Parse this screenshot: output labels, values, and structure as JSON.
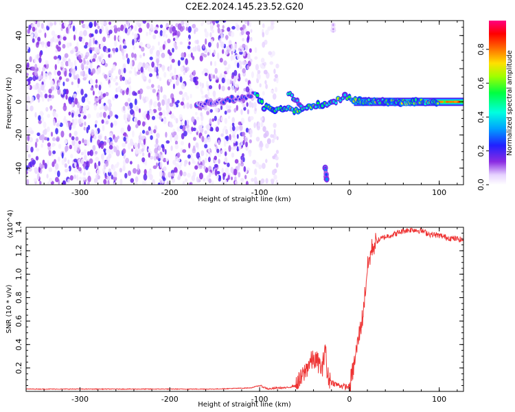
{
  "figure": {
    "title": "C2E2.2024.145.23.52.G20"
  },
  "chart_data": [
    {
      "type": "heatmap",
      "title": "C2E2.2024.145.23.52.G20",
      "xlabel": "Height of straight line (km)",
      "ylabel": "Frequency (Hz)",
      "xlim": [
        -360,
        127
      ],
      "ylim": [
        -50,
        49
      ],
      "xticks": [
        -300,
        -200,
        -100,
        0,
        100
      ],
      "xtick_labels": [
        "-300",
        "-200",
        "-100",
        "0",
        "100"
      ],
      "yticks": [
        -40,
        -20,
        0,
        20,
        40
      ],
      "ytick_labels": [
        "-40",
        "-20",
        "0",
        "20",
        "40"
      ],
      "grid": false,
      "colorbar": {
        "label": "Normalized spectral amplitude",
        "range": [
          0,
          0.97
        ],
        "ticks": [
          0.0,
          0.2,
          0.4,
          0.6,
          0.8
        ],
        "tick_labels": [
          "0.0",
          "0.2",
          "0.4",
          "0.6",
          "0.8"
        ],
        "placement": "right",
        "colormap": "rainbow (white → violet → blue → cyan → green → yellow → red → magenta)"
      },
      "features": [
        {
          "name": "noise",
          "x_range": [
            -360,
            -110
          ],
          "freq_range": [
            -50,
            49
          ],
          "amplitude": 0.05
        },
        {
          "name": "faint noise",
          "x_range": [
            -110,
            -80
          ],
          "freq_range": [
            -50,
            49
          ],
          "amplitude": 0.02
        },
        {
          "name": "trace",
          "points": [
            [
              -170,
              -2
            ],
            [
              -140,
              1
            ],
            [
              -115,
              3
            ],
            [
              -105,
              5
            ],
            [
              -95,
              -3
            ],
            [
              -85,
              -5
            ],
            [
              -70,
              -4
            ],
            [
              -55,
              -6
            ],
            [
              -45,
              -3
            ],
            [
              -35,
              -2
            ],
            [
              -25,
              -1
            ],
            [
              -15,
              0
            ],
            [
              -5,
              3
            ],
            [
              5,
              1
            ],
            [
              20,
              0
            ],
            [
              60,
              0
            ],
            [
              100,
              0
            ],
            [
              127,
              0
            ]
          ]
        },
        {
          "name": "branch",
          "points": [
            [
              -68,
              5
            ],
            [
              -60,
              1
            ],
            [
              -52,
              -5
            ]
          ]
        },
        {
          "name": "lower echo",
          "points": [
            [
              -27,
              -40
            ],
            [
              -26,
              -44
            ],
            [
              -25,
              -48
            ]
          ]
        },
        {
          "name": "upper echo",
          "points": [
            [
              -18,
              43
            ],
            [
              -18,
              46
            ]
          ]
        }
      ]
    },
    {
      "type": "line",
      "xlabel": "Height of straight line (km)",
      "ylabel": "SNR (10 * v/v)",
      "ylabel_multiplier": "(x10^4)",
      "xlim": [
        -360,
        127
      ],
      "ylim": [
        0,
        1.4
      ],
      "xticks": [
        -300,
        -200,
        -100,
        0,
        100
      ],
      "xtick_labels": [
        "-300",
        "-200",
        "-100",
        "0",
        "100"
      ],
      "yticks": [
        0.2,
        0.4,
        0.6,
        0.8,
        1.0,
        1.2,
        1.4
      ],
      "ytick_labels": [
        "0.2",
        "0.4",
        "0.6",
        "0.8",
        "1.0",
        "1.2",
        "1.4"
      ],
      "grid": false,
      "series": [
        {
          "color": "#ee3333",
          "x": [
            -360,
            -300,
            -250,
            -200,
            -150,
            -110,
            -100,
            -90,
            -80,
            -70,
            -60,
            -55,
            -50,
            -45,
            -40,
            -35,
            -30,
            -27,
            -25,
            -20,
            -15,
            -10,
            -5,
            0,
            5,
            10,
            15,
            20,
            25,
            30,
            40,
            50,
            60,
            70,
            80,
            90,
            100,
            110,
            120,
            127
          ],
          "y": [
            0.02,
            0.02,
            0.02,
            0.02,
            0.02,
            0.03,
            0.05,
            0.02,
            0.03,
            0.03,
            0.05,
            0.09,
            0.16,
            0.24,
            0.27,
            0.25,
            0.18,
            0.42,
            0.14,
            0.08,
            0.06,
            0.05,
            0.04,
            0.04,
            0.22,
            0.45,
            0.65,
            1.05,
            1.22,
            1.28,
            1.32,
            1.34,
            1.37,
            1.38,
            1.37,
            1.34,
            1.33,
            1.31,
            1.3,
            1.29
          ]
        }
      ]
    }
  ]
}
